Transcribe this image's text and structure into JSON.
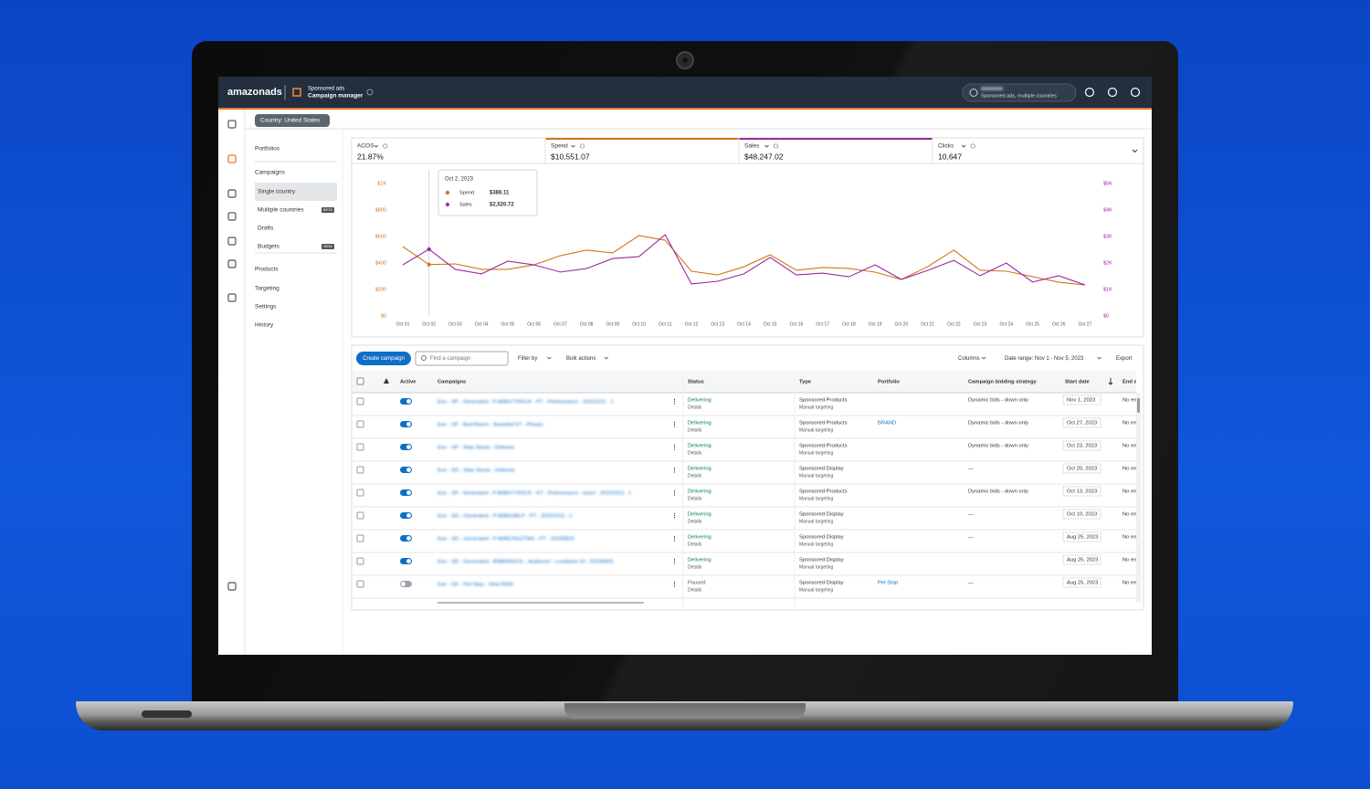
{
  "nav": {
    "brand": "amazonads",
    "product": "Sponsored ads",
    "page": "Campaign manager",
    "account": "Sponsored ads, multiple countries"
  },
  "country": "Country: United States",
  "sidebar": [
    {
      "label": "Portfolios"
    },
    {
      "label": "Campaigns"
    },
    {
      "label": "Single country",
      "selected": true
    },
    {
      "label": "Multiple countries",
      "badge": "BETA"
    },
    {
      "label": "Drafts"
    },
    {
      "label": "Budgets",
      "badge": "NEW"
    },
    {
      "label": "Products"
    },
    {
      "label": "Targeting"
    },
    {
      "label": "Settings"
    },
    {
      "label": "History"
    }
  ],
  "metrics": [
    {
      "label": "ACOS",
      "value": "21.87%"
    },
    {
      "label": "Spend",
      "value": "$10,551.07"
    },
    {
      "label": "Sales",
      "value": "$48,247.02"
    },
    {
      "label": "Clicks",
      "value": "10,647"
    }
  ],
  "chart_data": {
    "type": "line",
    "categories": [
      "Oct 01",
      "Oct 02",
      "Oct 03",
      "Oct 04",
      "Oct 05",
      "Oct 06",
      "Oct 07",
      "Oct 08",
      "Oct 09",
      "Oct 10",
      "Oct 11",
      "Oct 12",
      "Oct 13",
      "Oct 14",
      "Oct 15",
      "Oct 16",
      "Oct 17",
      "Oct 18",
      "Oct 19",
      "Oct 20",
      "Oct 21",
      "Oct 22",
      "Oct 23",
      "Oct 24",
      "Oct 25",
      "Oct 26",
      "Oct 27"
    ],
    "series": [
      {
        "name": "Spend",
        "color": "#d2761c",
        "values": [
          524,
          388.11,
          393,
          352,
          352,
          386,
          455,
          497,
          476,
          607,
          572,
          338,
          310,
          372,
          462,
          345,
          366,
          359,
          331,
          276,
          372,
          497,
          345,
          338,
          297,
          255,
          234
        ]
      },
      {
        "name": "Sales",
        "color": "#9b2a9e",
        "axis": "y2",
        "values": [
          1930,
          2520.72,
          1760,
          1590,
          2070,
          1930,
          1660,
          1790,
          2170,
          2240,
          3070,
          1210,
          1310,
          1590,
          2210,
          1550,
          1620,
          1480,
          1930,
          1380,
          1720,
          2100,
          1520,
          2000,
          1280,
          1520,
          1170
        ]
      }
    ],
    "ylim": [
      0,
      1000
    ],
    "yticks": [
      {
        "value": 0,
        "label": "$0"
      },
      {
        "value": 200,
        "label": "$200"
      },
      {
        "value": 400,
        "label": "$400"
      },
      {
        "value": 600,
        "label": "$600"
      },
      {
        "value": 800,
        "label": "$800"
      },
      {
        "value": 1000,
        "label": "$1K"
      }
    ],
    "y2lim": [
      0,
      5000
    ],
    "y2ticks": [
      {
        "value": 0,
        "label": "$0"
      },
      {
        "value": 1000,
        "label": "$1K"
      },
      {
        "value": 2000,
        "label": "$2K"
      },
      {
        "value": 3000,
        "label": "$3K"
      },
      {
        "value": 4000,
        "label": "$4K"
      },
      {
        "value": 5000,
        "label": "$5K"
      }
    ],
    "grid": false,
    "tooltip": {
      "title": "Oct 2, 2023",
      "values": [
        "$388.11",
        "$2,520.72"
      ]
    }
  },
  "toolbar": {
    "create": "Create campaign",
    "search": "Find a campaign",
    "filter": "Filter by",
    "bulk": "Bulk actions",
    "columns": "Columns",
    "date_range": "Date range: Nov 1 - Nov 5, 2023",
    "export": "Export"
  },
  "table": {
    "columns": [
      "Active",
      "Campaigns",
      "Status",
      "Type",
      "Portfolio",
      "Campaign bidding strategy",
      "Start date",
      "End date"
    ],
    "rows": [
      {
        "active": true,
        "name": "Exe - SP - Generated - P-B0BX7YR2LR - PT - Performance - 20231101 - 1",
        "status": "Delivering",
        "detail": "Details",
        "type": "Sponsored Products",
        "targeting": "Manual targeting",
        "bidding": "Dynamic bids - down only",
        "start": "Nov 1, 2023",
        "end": "No end date"
      },
      {
        "active": true,
        "name": "Exe - SP - Bed Risers - Branded KT - Phrase",
        "status": "Delivering",
        "detail": "Details",
        "type": "Sponsored Products",
        "targeting": "Manual targeting",
        "portfolio": "BRAND",
        "bidding": "Dynamic bids - down only",
        "start": "Oct 27, 2023",
        "end": "No end date"
      },
      {
        "active": true,
        "name": "Exe - SP - Step Stools - Defense",
        "status": "Delivering",
        "detail": "Details",
        "type": "Sponsored Products",
        "targeting": "Manual targeting",
        "bidding": "Dynamic bids - down only",
        "start": "Oct 23, 2023",
        "end": "No end date"
      },
      {
        "active": true,
        "name": "Exe - SD - Step Stools - Defense",
        "status": "Delivering",
        "detail": "Details",
        "type": "Sponsored Display",
        "targeting": "Manual targeting",
        "bidding": "—",
        "start": "Oct 20, 2023",
        "end": "No end date"
      },
      {
        "active": true,
        "name": "Exe - SP - Generated - P-B0BX7YR2LR - KT - Performance - exact - 20231013 - 1",
        "status": "Delivering",
        "detail": "Details",
        "type": "Sponsored Products",
        "targeting": "Manual targeting",
        "bidding": "Dynamic bids - down only",
        "start": "Oct 13, 2023",
        "end": "No end date"
      },
      {
        "active": true,
        "name": "Exe - SD - Generated - P-B0BX4BLP - PT - 20231010 - 1",
        "status": "Delivering",
        "detail": "Details",
        "type": "Sponsored Display",
        "targeting": "Manual targeting",
        "bidding": "—",
        "start": "Oct 10, 2023",
        "end": "No end date"
      },
      {
        "active": true,
        "name": "Exe - SD - Generated - P-B0BCRGZTMS - PT - 20230825",
        "status": "Delivering",
        "detail": "Details",
        "type": "Sponsored Display",
        "targeting": "Manual targeting",
        "bidding": "—",
        "start": "Aug 25, 2023",
        "end": "No end date"
      },
      {
        "active": true,
        "name": "Exe - SD - Generated - B0BRNGXJL - Audience - Lookback 14 - 20230825",
        "status": "Delivering",
        "detail": "Details",
        "type": "Sponsored Display",
        "targeting": "Manual targeting",
        "start": "Aug 25, 2023",
        "end": "No end date"
      },
      {
        "active": false,
        "name": "Exe - SD - Pet Step - View REM",
        "status": "Paused",
        "detail": "Details",
        "type": "Sponsored Display",
        "targeting": "Manual targeting",
        "portfolio": "Pet Stop",
        "bidding": "—",
        "start": "Aug 25, 2023",
        "end": "No end date"
      }
    ]
  }
}
